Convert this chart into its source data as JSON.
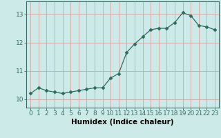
{
  "x": [
    0,
    1,
    2,
    3,
    4,
    5,
    6,
    7,
    8,
    9,
    10,
    11,
    12,
    13,
    14,
    15,
    16,
    17,
    18,
    19,
    20,
    21,
    22,
    23
  ],
  "y": [
    10.2,
    10.4,
    10.3,
    10.25,
    10.2,
    10.25,
    10.3,
    10.35,
    10.4,
    10.4,
    10.75,
    10.9,
    11.65,
    11.95,
    12.2,
    12.45,
    12.5,
    12.5,
    12.7,
    13.05,
    12.95,
    12.6,
    12.55,
    12.45
  ],
  "line_color": "#2e6b5e",
  "marker": "D",
  "marker_size": 2.5,
  "line_width": 0.9,
  "bg_color": "#cceae8",
  "grid_color_v": "#d4a0a0",
  "grid_color_h": "#d4a0a0",
  "xlabel": "Humidex (Indice chaleur)",
  "xlabel_fontsize": 7.5,
  "xlabel_bold": true,
  "ylim": [
    9.7,
    13.45
  ],
  "xlim": [
    -0.5,
    23.5
  ],
  "yticks": [
    10,
    11,
    12,
    13
  ],
  "xticks": [
    0,
    1,
    2,
    3,
    4,
    5,
    6,
    7,
    8,
    9,
    10,
    11,
    12,
    13,
    14,
    15,
    16,
    17,
    18,
    19,
    20,
    21,
    22,
    23
  ],
  "tick_fontsize": 6.5,
  "axis_color": "#3d6b65"
}
